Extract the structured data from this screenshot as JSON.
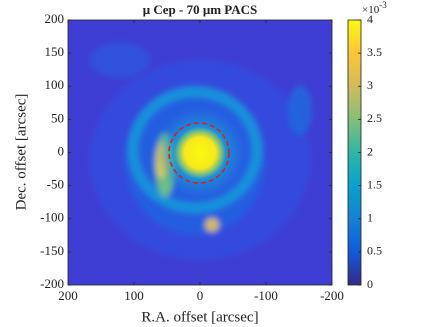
{
  "chart_data": {
    "type": "heatmap",
    "title": "μ Cep - 70 μm PACS",
    "xlabel": "R.A. offset [arcsec]",
    "ylabel": "Dec. offset [arcsec]",
    "xlim": [
      200,
      -200
    ],
    "xticks": [
      200,
      100,
      0,
      -100,
      -200
    ],
    "ylim": [
      -200,
      200
    ],
    "yticks": [
      -200,
      -150,
      -100,
      -50,
      0,
      50,
      100,
      150,
      200
    ],
    "colorbar": {
      "lim": [
        0,
        4
      ],
      "ticks": [
        0,
        0.5,
        1,
        1.5,
        2,
        2.5,
        3,
        3.5,
        4
      ],
      "scale_base": "×10",
      "scale_exponent": "-3",
      "colormap": "parula"
    }
  }
}
